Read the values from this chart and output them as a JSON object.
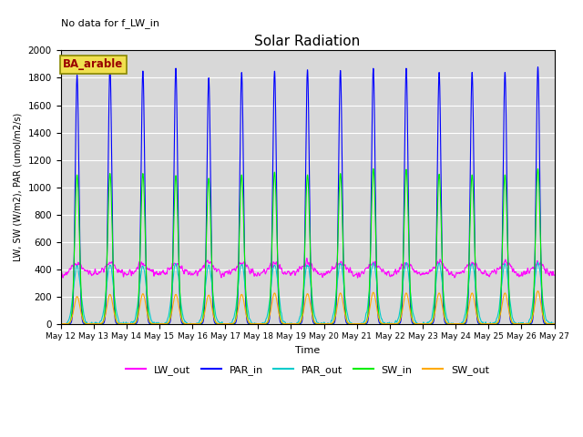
{
  "title": "Solar Radiation",
  "ylabel": "LW, SW (W/m2), PAR (umol/m2/s)",
  "xlabel": "Time",
  "annotation_text": "No data for f_LW_in",
  "box_label": "BA_arable",
  "ylim": [
    0,
    2000
  ],
  "n_days": 15,
  "xtick_labels": [
    "May 12",
    "May 13",
    "May 14",
    "May 15",
    "May 16",
    "May 17",
    "May 18",
    "May 19",
    "May 20",
    "May 21",
    "May 22",
    "May 23",
    "May 24",
    "May 25",
    "May 26",
    "May 27"
  ],
  "colors": {
    "LW_out": "#ff00ff",
    "PAR_in": "#0000ff",
    "PAR_out": "#00cccc",
    "SW_in": "#00ee00",
    "SW_out": "#ffaa00"
  },
  "background_color": "#d8d8d8",
  "LW_out_base": 360,
  "LW_out_noise_amp": 30,
  "LW_out_daily_amp": 80,
  "PAR_in_peaks": [
    1820,
    1880,
    1850,
    1870,
    1800,
    1840,
    1850,
    1860,
    1855,
    1870,
    1870,
    1840,
    1840,
    1840,
    1880
  ],
  "SW_in_peaks": [
    1090,
    1100,
    1100,
    1085,
    1065,
    1090,
    1110,
    1090,
    1100,
    1135,
    1130,
    1095,
    1090,
    1090,
    1135
  ],
  "SW_out_peaks": [
    200,
    215,
    220,
    215,
    210,
    215,
    225,
    220,
    225,
    230,
    225,
    225,
    225,
    225,
    240
  ],
  "PAR_out_peaks": [
    420,
    430,
    420,
    435,
    425,
    435,
    440,
    435,
    440,
    450,
    445,
    440,
    440,
    440,
    450
  ],
  "peak_sharpness_par_in": 0.055,
  "peak_sharpness_sw_in": 0.07,
  "peak_sharpness_sw_out": 0.09,
  "peak_sharpness_par_out": 0.11
}
